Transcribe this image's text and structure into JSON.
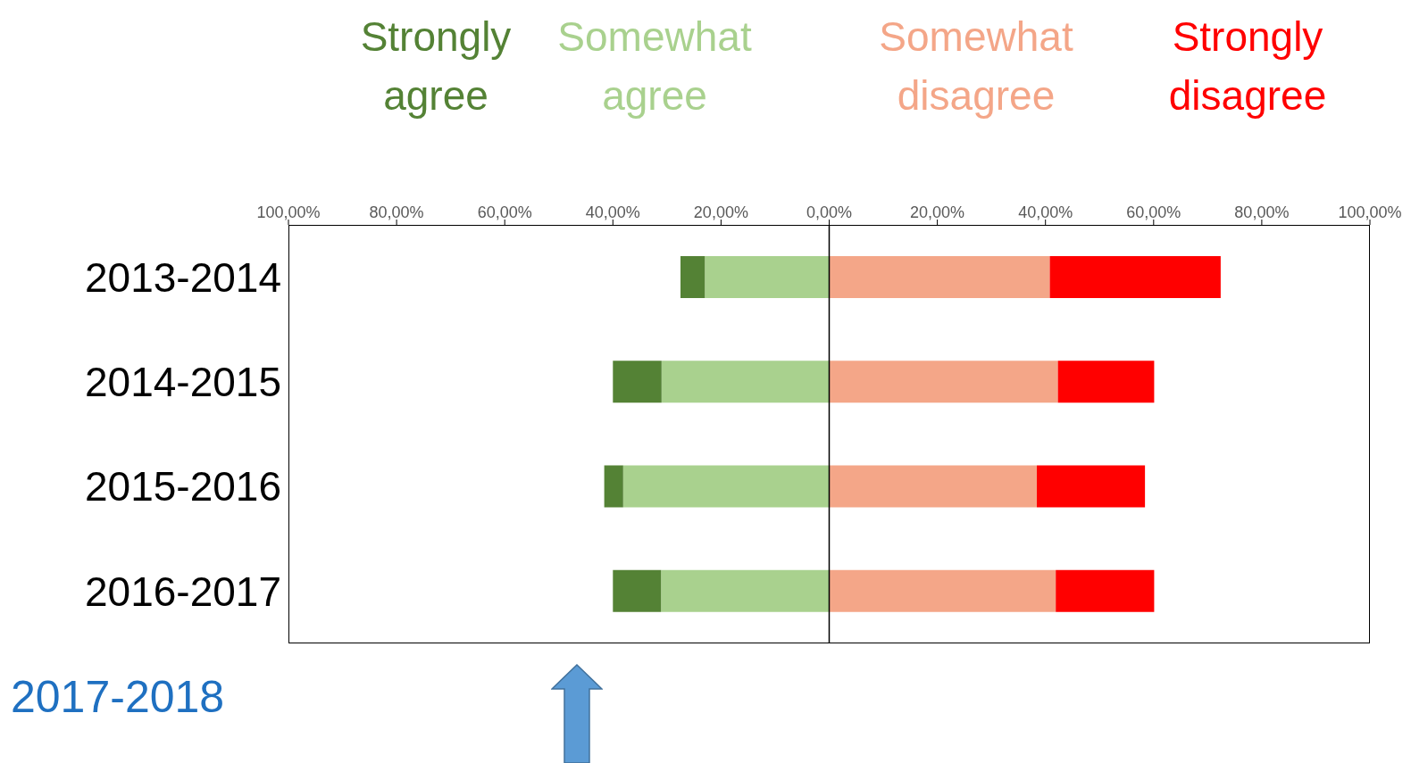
{
  "chart_data": {
    "type": "bar",
    "orientation": "horizontal",
    "stacked": true,
    "categories": [
      "2013-2014",
      "2014-2015",
      "2015-2016",
      "2016-2017"
    ],
    "series": [
      {
        "name": "Somewhat agree",
        "color": "#a9d18e",
        "values": [
          -23,
          -31,
          -38.1,
          -31.1
        ]
      },
      {
        "name": "Strongly agree",
        "color": "#548235",
        "values": [
          -4.5,
          -9,
          -3.5,
          -8.9
        ]
      },
      {
        "name": "Somewhat disagree",
        "color": "#f4a688",
        "values": [
          40.8,
          42.3,
          38.4,
          41.9
        ]
      },
      {
        "name": "Strongly disagree",
        "color": "#ff0000",
        "values": [
          31.6,
          17.8,
          20,
          18.2
        ]
      }
    ],
    "xlim": [
      -100,
      100
    ],
    "xticks": [
      {
        "value": -100,
        "label": "100,00%"
      },
      {
        "value": -80,
        "label": "80,00%"
      },
      {
        "value": -60,
        "label": "60,00%"
      },
      {
        "value": -40,
        "label": "40,00%"
      },
      {
        "value": -20,
        "label": "20,00%"
      },
      {
        "value": 0,
        "label": "0,00%"
      },
      {
        "value": 20,
        "label": "20,00%"
      },
      {
        "value": 40,
        "label": "40,00%"
      },
      {
        "value": 60,
        "label": "60,00%"
      },
      {
        "value": 80,
        "label": "80,00%"
      },
      {
        "value": 100,
        "label": "100,00%"
      }
    ],
    "ref_lines": [
      {
        "axis": "x",
        "value": 0,
        "color": "#000000"
      }
    ],
    "annotations": [
      "2017-2018"
    ],
    "legend": "top",
    "grid": false
  }
}
